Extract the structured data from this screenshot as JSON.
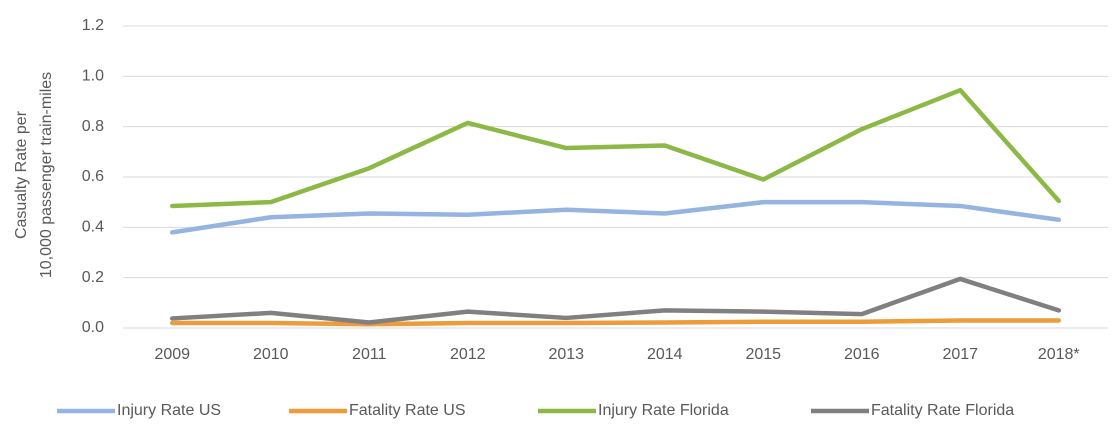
{
  "chart_data": {
    "type": "line",
    "ylabel": [
      "Casualty Rate per",
      "10,000 passenger train-miles"
    ],
    "categories": [
      "2009",
      "2010",
      "2011",
      "2012",
      "2013",
      "2014",
      "2015",
      "2016",
      "2017",
      "2018*"
    ],
    "series": [
      {
        "name": "Injury Rate US",
        "color": "#95b4e0",
        "values": [
          0.38,
          0.44,
          0.455,
          0.45,
          0.47,
          0.455,
          0.5,
          0.5,
          0.485,
          0.43
        ]
      },
      {
        "name": "Fatality Rate US",
        "color": "#ee9b3a",
        "values": [
          0.02,
          0.02,
          0.015,
          0.02,
          0.02,
          0.022,
          0.025,
          0.025,
          0.03,
          0.03
        ]
      },
      {
        "name": "Injury Rate Florida",
        "color": "#8cb946",
        "values": [
          0.485,
          0.5,
          0.635,
          0.815,
          0.715,
          0.725,
          0.59,
          0.79,
          0.945,
          0.505
        ]
      },
      {
        "name": "Fatality Rate Florida",
        "color": "#808080",
        "values": [
          0.038,
          0.06,
          0.022,
          0.065,
          0.04,
          0.07,
          0.065,
          0.055,
          0.195,
          0.07
        ]
      }
    ],
    "ylim": [
      0,
      1.2
    ],
    "yticks": [
      {
        "value": 0,
        "label": "0.0"
      },
      0.2,
      0.4,
      0.6,
      0.8,
      {
        "value": 1,
        "label": "1.0"
      },
      1.2
    ],
    "grid": true,
    "legend": "bottom"
  }
}
